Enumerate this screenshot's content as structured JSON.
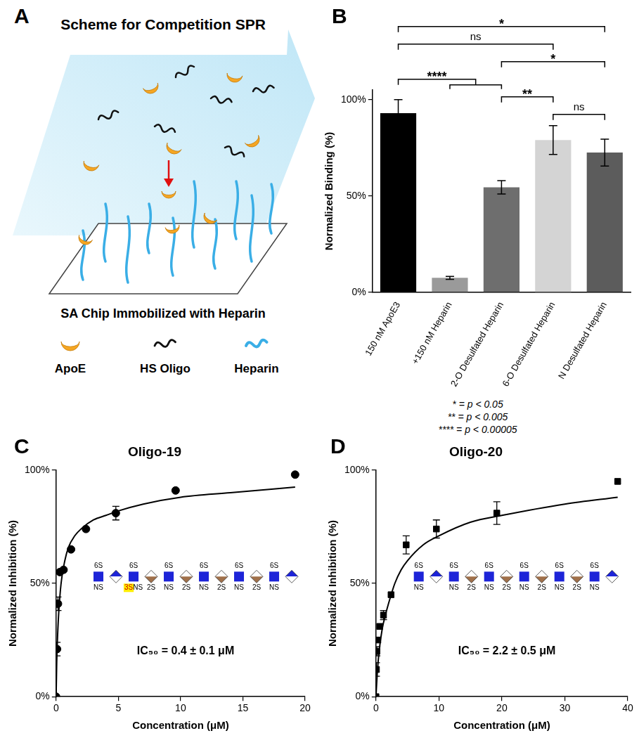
{
  "diagram": {
    "panel": "A",
    "title": "Scheme for Competition SPR",
    "caption": "SA Chip Immobilized with Heparin",
    "key": [
      {
        "label": "ApoE",
        "marker": "crescent",
        "color": "#f5a623"
      },
      {
        "label": "HS Oligo",
        "marker": "strand",
        "color": "#111111"
      },
      {
        "label": "Heparin",
        "marker": "strand",
        "color": "#3aaee6"
      }
    ]
  },
  "chart_data": [
    {
      "panel": "B",
      "type": "bar",
      "y_label": "Normalized Binding (%)",
      "categories": [
        "150 nM ApoE3",
        "+150 nM Heparin",
        "2-O Desulfated Heparin",
        "6-O Desulfated Heparin",
        "N Desulfated Heparin"
      ],
      "values": [
        93,
        7.5,
        54.5,
        79,
        72.5
      ],
      "errors": [
        7,
        0.8,
        3.5,
        7.5,
        7
      ],
      "colors": [
        "#000000",
        "#9a9a9a",
        "#6e6e6e",
        "#d4d4d4",
        "#5c5c5c"
      ],
      "ylim": [
        0,
        105
      ],
      "yticks": [
        {
          "value": 0,
          "label": "0%"
        },
        {
          "value": 50,
          "label": "50%"
        },
        {
          "value": 100,
          "label": "100%"
        }
      ],
      "grid": false,
      "brackets": [
        {
          "from": [
            0
          ],
          "to": [
            4
          ],
          "label": "*"
        },
        {
          "from": [
            0
          ],
          "to": [
            3
          ],
          "label": "ns"
        },
        {
          "from": [
            0
          ],
          "to": [
            1,
            2
          ],
          "label": "****"
        },
        {
          "from": [
            2
          ],
          "to": [
            4
          ],
          "label": "*"
        },
        {
          "from": [
            3
          ],
          "to": [
            4
          ],
          "label": "ns"
        },
        {
          "from": [
            2
          ],
          "to": [
            3
          ],
          "label": "**"
        }
      ],
      "notes": [
        "* = p < 0.05",
        "** = p < 0.005",
        "**** = p < 0.00005"
      ]
    },
    {
      "panel": "C",
      "type": "scatter",
      "title": "Oligo-19",
      "x_label": "Concentration (μM)",
      "y_label": "Normalized Inhibition (%)",
      "marker": "circle",
      "x": [
        0,
        0.075,
        0.15,
        0.3,
        0.6,
        1.2,
        2.4,
        4.8,
        9.6,
        19.2
      ],
      "values": [
        0,
        21,
        41,
        55,
        56,
        65,
        74,
        81,
        91,
        98
      ],
      "errors": [
        null,
        3,
        3,
        null,
        null,
        null,
        null,
        3,
        null,
        null
      ],
      "fit": {
        "x": [
          0,
          0.05,
          0.1,
          0.2,
          0.4,
          0.7,
          1,
          1.5,
          2,
          3,
          4,
          5,
          7,
          10,
          14,
          19.2
        ],
        "values": [
          0,
          15,
          24,
          36,
          50,
          60,
          66,
          71,
          74,
          78,
          80,
          82,
          85,
          88,
          90,
          92.5
        ]
      },
      "xlim": [
        0,
        20
      ],
      "xticks": [
        0,
        5,
        10,
        15,
        20
      ],
      "ylim": [
        0,
        100
      ],
      "yticks": [
        {
          "value": 0,
          "label": "0%"
        },
        {
          "value": 50,
          "label": "50%"
        },
        {
          "value": 100,
          "label": "100%"
        }
      ],
      "grid": false,
      "annotation": "IC₅₀ = 0.4 ± 0.1 μM",
      "structure": [
        {
          "marker": "square",
          "color": "#1d24d8",
          "label_above": "6S",
          "label_below": "NS"
        },
        {
          "marker": "diamond",
          "colors": [
            "#1d24d8",
            "#ffffff"
          ]
        },
        {
          "marker": "square",
          "color": "#1d24d8",
          "label_above": "6S",
          "label_below": "3SNS",
          "highlight": "3S"
        },
        {
          "marker": "diamond",
          "colors": [
            "#ffffff",
            "#a0704a"
          ],
          "label_below": "2S"
        },
        {
          "marker": "square",
          "color": "#1d24d8",
          "label_above": "6S",
          "label_below": "NS"
        },
        {
          "marker": "diamond",
          "colors": [
            "#ffffff",
            "#a0704a"
          ],
          "label_below": "2S"
        },
        {
          "marker": "square",
          "color": "#1d24d8",
          "label_above": "6S",
          "label_below": "NS"
        },
        {
          "marker": "diamond",
          "colors": [
            "#ffffff",
            "#a0704a"
          ],
          "label_below": "2S"
        },
        {
          "marker": "square",
          "color": "#1d24d8",
          "label_above": "6S",
          "label_below": "NS"
        },
        {
          "marker": "diamond",
          "colors": [
            "#ffffff",
            "#a0704a"
          ],
          "label_below": "2S"
        },
        {
          "marker": "square",
          "color": "#1d24d8",
          "label_above": "6S",
          "label_below": "NS"
        },
        {
          "marker": "diamond",
          "colors": [
            "#1d24d8",
            "#ffffff"
          ]
        }
      ]
    },
    {
      "panel": "D",
      "type": "scatter",
      "title": "Oligo-20",
      "x_label": "Concentration (μM)",
      "y_label": "Normalized Inhibition (%)",
      "marker": "square",
      "x": [
        0,
        0.075,
        0.15,
        0.3,
        0.6,
        1.2,
        2.4,
        4.8,
        9.6,
        19.2,
        38.4
      ],
      "values": [
        0,
        12,
        20,
        25,
        31,
        36,
        45,
        67,
        74,
        81,
        95
      ],
      "errors": [
        null,
        3,
        2,
        null,
        null,
        2,
        null,
        4,
        4,
        5,
        null
      ],
      "fit": {
        "x": [
          0,
          0.2,
          0.5,
          1,
          1.5,
          2.2,
          3,
          4,
          5,
          7.5,
          10,
          15,
          20,
          30,
          38.4
        ],
        "values": [
          0,
          10,
          20,
          30,
          36,
          43,
          50,
          56,
          60,
          67,
          71,
          77,
          80,
          85,
          88
        ]
      },
      "xlim": [
        0,
        40
      ],
      "xticks": [
        0,
        10,
        20,
        30,
        40
      ],
      "ylim": [
        0,
        100
      ],
      "yticks": [
        {
          "value": 0,
          "label": "0%"
        },
        {
          "value": 50,
          "label": "50%"
        },
        {
          "value": 100,
          "label": "100%"
        }
      ],
      "grid": false,
      "annotation": "IC₅₀ = 2.2 ± 0.5 μM",
      "structure": [
        {
          "marker": "square",
          "color": "#1d24d8",
          "label_above": "6S",
          "label_below": "NS"
        },
        {
          "marker": "diamond",
          "colors": [
            "#1d24d8",
            "#ffffff"
          ]
        },
        {
          "marker": "square",
          "color": "#1d24d8",
          "label_above": "6S",
          "label_below": "NS"
        },
        {
          "marker": "diamond",
          "colors": [
            "#ffffff",
            "#a0704a"
          ],
          "label_below": "2S"
        },
        {
          "marker": "square",
          "color": "#1d24d8",
          "label_above": "6S",
          "label_below": "NS"
        },
        {
          "marker": "diamond",
          "colors": [
            "#ffffff",
            "#a0704a"
          ],
          "label_below": "2S"
        },
        {
          "marker": "square",
          "color": "#1d24d8",
          "label_above": "6S",
          "label_below": "NS"
        },
        {
          "marker": "diamond",
          "colors": [
            "#ffffff",
            "#a0704a"
          ],
          "label_below": "2S"
        },
        {
          "marker": "square",
          "color": "#1d24d8",
          "label_above": "6S",
          "label_below": "NS"
        },
        {
          "marker": "diamond",
          "colors": [
            "#ffffff",
            "#a0704a"
          ],
          "label_below": "2S"
        },
        {
          "marker": "square",
          "color": "#1d24d8",
          "label_above": "6S",
          "label_below": "NS"
        },
        {
          "marker": "diamond",
          "colors": [
            "#1d24d8",
            "#ffffff"
          ]
        }
      ]
    }
  ]
}
